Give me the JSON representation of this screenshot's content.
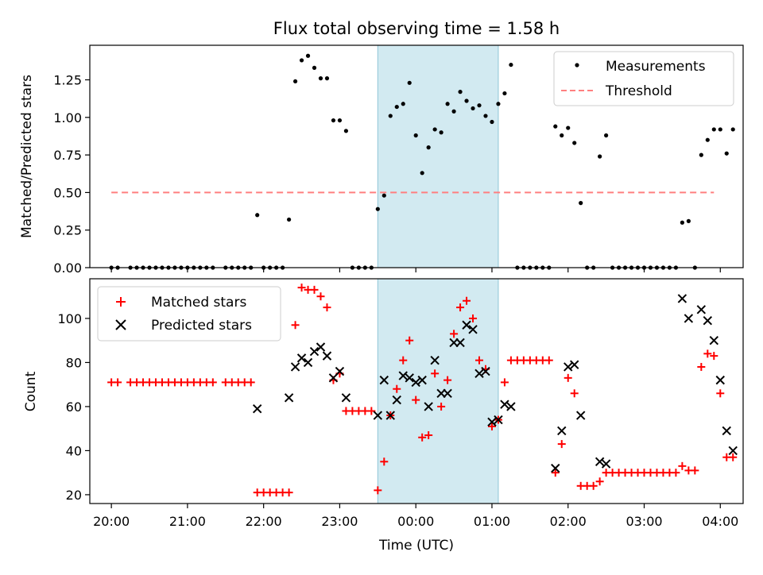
{
  "title": "Flux total observing time = 1.58 h",
  "colors": {
    "measurement": "#000000",
    "threshold": "#ff7f7f",
    "matched": "#ff0000",
    "predicted": "#000000",
    "highlight": "#add8e6"
  },
  "chart_data": [
    {
      "type": "scatter",
      "ylabel": "Matched/Predicted stars",
      "ylim": [
        0,
        1.48
      ],
      "xlim": [
        "19:43",
        "04:18"
      ],
      "yticks": [
        "0.00",
        "0.25",
        "0.50",
        "0.75",
        "1.00",
        "1.25"
      ],
      "ytick_values": [
        0,
        0.25,
        0.5,
        0.75,
        1.0,
        1.25
      ],
      "highlight_span": [
        "23:30",
        "01:05"
      ],
      "threshold": {
        "value": 0.5,
        "x_start": "20:00",
        "x_end": "03:55"
      },
      "legend": {
        "position": "top-right",
        "entries": [
          "Measurements",
          "Threshold"
        ]
      },
      "series": [
        {
          "name": "Measurements",
          "points": [
            [
              "20:00",
              0
            ],
            [
              "20:05",
              0
            ],
            [
              "20:15",
              0
            ],
            [
              "20:20",
              0
            ],
            [
              "20:25",
              0
            ],
            [
              "20:30",
              0
            ],
            [
              "20:35",
              0
            ],
            [
              "20:40",
              0
            ],
            [
              "20:45",
              0
            ],
            [
              "20:50",
              0
            ],
            [
              "20:55",
              0
            ],
            [
              "21:00",
              0
            ],
            [
              "21:05",
              0
            ],
            [
              "21:10",
              0
            ],
            [
              "21:15",
              0
            ],
            [
              "21:20",
              0
            ],
            [
              "21:30",
              0
            ],
            [
              "21:35",
              0
            ],
            [
              "21:40",
              0
            ],
            [
              "21:45",
              0
            ],
            [
              "21:50",
              0
            ],
            [
              "21:55",
              0.35
            ],
            [
              "22:00",
              0
            ],
            [
              "22:05",
              0
            ],
            [
              "22:10",
              0
            ],
            [
              "22:15",
              0
            ],
            [
              "22:20",
              0.32
            ],
            [
              "22:25",
              1.24
            ],
            [
              "22:30",
              1.38
            ],
            [
              "22:35",
              1.41
            ],
            [
              "22:40",
              1.33
            ],
            [
              "22:45",
              1.26
            ],
            [
              "22:50",
              1.26
            ],
            [
              "22:55",
              0.98
            ],
            [
              "23:00",
              0.98
            ],
            [
              "23:05",
              0.91
            ],
            [
              "23:10",
              0
            ],
            [
              "23:15",
              0
            ],
            [
              "23:20",
              0
            ],
            [
              "23:25",
              0
            ],
            [
              "23:30",
              0.39
            ],
            [
              "23:35",
              0.48
            ],
            [
              "23:40",
              1.01
            ],
            [
              "23:45",
              1.07
            ],
            [
              "23:50",
              1.09
            ],
            [
              "23:55",
              1.23
            ],
            [
              "00:00",
              0.88
            ],
            [
              "00:05",
              0.63
            ],
            [
              "00:10",
              0.8
            ],
            [
              "00:15",
              0.92
            ],
            [
              "00:20",
              0.9
            ],
            [
              "00:25",
              1.09
            ],
            [
              "00:30",
              1.04
            ],
            [
              "00:35",
              1.17
            ],
            [
              "00:40",
              1.11
            ],
            [
              "00:45",
              1.06
            ],
            [
              "00:50",
              1.08
            ],
            [
              "00:55",
              1.01
            ],
            [
              "01:00",
              0.97
            ],
            [
              "01:05",
              1.09
            ],
            [
              "01:10",
              1.16
            ],
            [
              "01:15",
              1.35
            ],
            [
              "01:20",
              0
            ],
            [
              "01:25",
              0
            ],
            [
              "01:30",
              0
            ],
            [
              "01:35",
              0
            ],
            [
              "01:40",
              0
            ],
            [
              "01:45",
              0
            ],
            [
              "01:50",
              0.94
            ],
            [
              "01:55",
              0.88
            ],
            [
              "02:00",
              0.93
            ],
            [
              "02:05",
              0.83
            ],
            [
              "02:10",
              0.43
            ],
            [
              "02:15",
              0
            ],
            [
              "02:20",
              0
            ],
            [
              "02:25",
              0.74
            ],
            [
              "02:30",
              0.88
            ],
            [
              "02:35",
              0
            ],
            [
              "02:40",
              0
            ],
            [
              "02:45",
              0
            ],
            [
              "02:50",
              0
            ],
            [
              "02:55",
              0
            ],
            [
              "03:00",
              0
            ],
            [
              "03:05",
              0
            ],
            [
              "03:10",
              0
            ],
            [
              "03:15",
              0
            ],
            [
              "03:20",
              0
            ],
            [
              "03:25",
              0
            ],
            [
              "03:30",
              0.3
            ],
            [
              "03:35",
              0.31
            ],
            [
              "03:40",
              0
            ],
            [
              "03:45",
              0.75
            ],
            [
              "03:50",
              0.85
            ],
            [
              "03:55",
              0.92
            ],
            [
              "04:00",
              0.92
            ],
            [
              "04:05",
              0.76
            ],
            [
              "04:10",
              0.92
            ]
          ]
        }
      ]
    },
    {
      "type": "scatter",
      "ylabel": "Count",
      "xlabel": "Time (UTC)",
      "ylim": [
        16,
        118
      ],
      "xlim": [
        "19:43",
        "04:18"
      ],
      "yticks": [
        "20",
        "40",
        "60",
        "80",
        "100"
      ],
      "ytick_values": [
        20,
        40,
        60,
        80,
        100
      ],
      "xticks": [
        "20:00",
        "21:00",
        "22:00",
        "23:00",
        "00:00",
        "01:00",
        "02:00",
        "03:00",
        "04:00"
      ],
      "highlight_span": [
        "23:30",
        "01:05"
      ],
      "legend": {
        "position": "top-left",
        "entries": [
          "Matched stars",
          "Predicted stars"
        ]
      },
      "series": [
        {
          "name": "Matched stars",
          "marker": "plus",
          "points": [
            [
              "20:00",
              71
            ],
            [
              "20:05",
              71
            ],
            [
              "20:15",
              71
            ],
            [
              "20:20",
              71
            ],
            [
              "20:25",
              71
            ],
            [
              "20:30",
              71
            ],
            [
              "20:35",
              71
            ],
            [
              "20:40",
              71
            ],
            [
              "20:45",
              71
            ],
            [
              "20:50",
              71
            ],
            [
              "20:55",
              71
            ],
            [
              "21:00",
              71
            ],
            [
              "21:05",
              71
            ],
            [
              "21:10",
              71
            ],
            [
              "21:15",
              71
            ],
            [
              "21:20",
              71
            ],
            [
              "21:30",
              71
            ],
            [
              "21:35",
              71
            ],
            [
              "21:40",
              71
            ],
            [
              "21:45",
              71
            ],
            [
              "21:50",
              71
            ],
            [
              "21:55",
              21
            ],
            [
              "22:00",
              21
            ],
            [
              "22:05",
              21
            ],
            [
              "22:10",
              21
            ],
            [
              "22:15",
              21
            ],
            [
              "22:20",
              21
            ],
            [
              "22:25",
              97
            ],
            [
              "22:30",
              114
            ],
            [
              "22:35",
              113
            ],
            [
              "22:40",
              113
            ],
            [
              "22:45",
              110
            ],
            [
              "22:50",
              105
            ],
            [
              "22:55",
              72
            ],
            [
              "23:00",
              75
            ],
            [
              "23:05",
              58
            ],
            [
              "23:10",
              58
            ],
            [
              "23:15",
              58
            ],
            [
              "23:20",
              58
            ],
            [
              "23:25",
              58
            ],
            [
              "23:30",
              22
            ],
            [
              "23:35",
              35
            ],
            [
              "23:40",
              56
            ],
            [
              "23:45",
              68
            ],
            [
              "23:50",
              81
            ],
            [
              "23:55",
              90
            ],
            [
              "00:00",
              63
            ],
            [
              "00:05",
              46
            ],
            [
              "00:10",
              47
            ],
            [
              "00:15",
              75
            ],
            [
              "00:20",
              60
            ],
            [
              "00:25",
              72
            ],
            [
              "00:30",
              93
            ],
            [
              "00:35",
              105
            ],
            [
              "00:40",
              108
            ],
            [
              "00:45",
              100
            ],
            [
              "00:50",
              81
            ],
            [
              "00:55",
              77
            ],
            [
              "01:00",
              51
            ],
            [
              "01:05",
              54
            ],
            [
              "01:10",
              71
            ],
            [
              "01:15",
              81
            ],
            [
              "01:20",
              81
            ],
            [
              "01:25",
              81
            ],
            [
              "01:30",
              81
            ],
            [
              "01:35",
              81
            ],
            [
              "01:40",
              81
            ],
            [
              "01:45",
              81
            ],
            [
              "01:50",
              30
            ],
            [
              "01:55",
              43
            ],
            [
              "02:00",
              73
            ],
            [
              "02:05",
              66
            ],
            [
              "02:10",
              24
            ],
            [
              "02:15",
              24
            ],
            [
              "02:20",
              24
            ],
            [
              "02:25",
              26
            ],
            [
              "02:30",
              30
            ],
            [
              "02:35",
              30
            ],
            [
              "02:40",
              30
            ],
            [
              "02:45",
              30
            ],
            [
              "02:50",
              30
            ],
            [
              "02:55",
              30
            ],
            [
              "03:00",
              30
            ],
            [
              "03:05",
              30
            ],
            [
              "03:10",
              30
            ],
            [
              "03:15",
              30
            ],
            [
              "03:20",
              30
            ],
            [
              "03:25",
              30
            ],
            [
              "03:30",
              33
            ],
            [
              "03:35",
              31
            ],
            [
              "03:40",
              31
            ],
            [
              "03:45",
              78
            ],
            [
              "03:50",
              84
            ],
            [
              "03:55",
              83
            ],
            [
              "04:00",
              66
            ],
            [
              "04:05",
              37
            ],
            [
              "04:10",
              37
            ]
          ]
        },
        {
          "name": "Predicted stars",
          "marker": "x",
          "points": [
            [
              "21:55",
              59
            ],
            [
              "22:20",
              64
            ],
            [
              "22:25",
              78
            ],
            [
              "22:30",
              82
            ],
            [
              "22:35",
              80
            ],
            [
              "22:40",
              85
            ],
            [
              "22:45",
              87
            ],
            [
              "22:50",
              83
            ],
            [
              "22:55",
              73
            ],
            [
              "23:00",
              76
            ],
            [
              "23:05",
              64
            ],
            [
              "23:30",
              56
            ],
            [
              "23:35",
              72
            ],
            [
              "23:40",
              56
            ],
            [
              "23:45",
              63
            ],
            [
              "23:50",
              74
            ],
            [
              "23:55",
              73
            ],
            [
              "00:00",
              71
            ],
            [
              "00:05",
              72
            ],
            [
              "00:10",
              60
            ],
            [
              "00:15",
              81
            ],
            [
              "00:20",
              66
            ],
            [
              "00:25",
              66
            ],
            [
              "00:30",
              89
            ],
            [
              "00:35",
              89
            ],
            [
              "00:40",
              97
            ],
            [
              "00:45",
              95
            ],
            [
              "00:50",
              75
            ],
            [
              "00:55",
              76
            ],
            [
              "01:00",
              53
            ],
            [
              "01:05",
              54
            ],
            [
              "01:10",
              61
            ],
            [
              "01:15",
              60
            ],
            [
              "01:50",
              32
            ],
            [
              "01:55",
              49
            ],
            [
              "02:00",
              78
            ],
            [
              "02:05",
              79
            ],
            [
              "02:10",
              56
            ],
            [
              "02:25",
              35
            ],
            [
              "02:30",
              34
            ],
            [
              "03:30",
              109
            ],
            [
              "03:35",
              100
            ],
            [
              "03:45",
              104
            ],
            [
              "03:50",
              99
            ],
            [
              "03:55",
              90
            ],
            [
              "04:00",
              72
            ],
            [
              "04:05",
              49
            ],
            [
              "04:10",
              40
            ]
          ]
        }
      ]
    }
  ]
}
